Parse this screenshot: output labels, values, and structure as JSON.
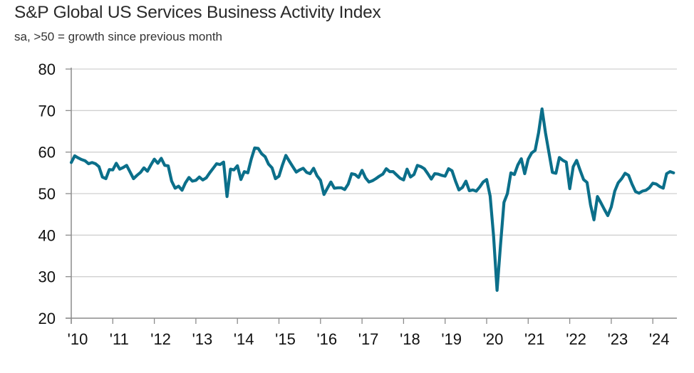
{
  "chart_data": {
    "type": "line",
    "title": "S&P Global US Services Business Activity Index",
    "subtitle": "sa, >50 = growth since previous month",
    "xlabel": "",
    "ylabel": "",
    "ylim": [
      20,
      80
    ],
    "yticks": [
      "80",
      "70",
      "60",
      "50",
      "40",
      "30",
      "20"
    ],
    "ytick_values": [
      80,
      70,
      60,
      50,
      40,
      30,
      20
    ],
    "xticks": [
      "'10",
      "'11",
      "'12",
      "'13",
      "'14",
      "'15",
      "'16",
      "'17",
      "'18",
      "'19",
      "'20",
      "'21",
      "'22",
      "'23",
      "'24"
    ],
    "x_range": [
      "2010-01",
      "2024-07"
    ],
    "grid": "horizontal",
    "legend": "none",
    "line_color": "#0B6F8A",
    "grid_color": "#d0d0d0",
    "axis_color": "#8c8c8c",
    "series": [
      {
        "name": "S&P Global US Services Business Activity Index",
        "frequency": "monthly",
        "start": "2010-01",
        "values": [
          57.5,
          59.1,
          58.6,
          58.2,
          57.9,
          57.2,
          57.5,
          57.2,
          56.5,
          54.0,
          53.6,
          55.8,
          55.7,
          57.3,
          55.9,
          56.3,
          56.8,
          55.2,
          53.6,
          54.4,
          55.1,
          56.2,
          55.4,
          56.9,
          58.3,
          57.3,
          58.5,
          56.8,
          56.7,
          53.0,
          51.3,
          51.8,
          50.8,
          52.6,
          53.9,
          53.0,
          53.2,
          54.0,
          53.3,
          53.8,
          55.0,
          56.1,
          57.2,
          57.0,
          57.6,
          49.3,
          55.9,
          55.7,
          56.7,
          53.4,
          55.3,
          55.0,
          58.3,
          61.0,
          60.9,
          59.6,
          58.9,
          57.1,
          56.2,
          53.6,
          54.2,
          56.9,
          59.2,
          57.8,
          56.5,
          55.2,
          55.7,
          56.1,
          55.1,
          54.8,
          56.1,
          54.3,
          53.2,
          49.8,
          51.3,
          52.8,
          51.3,
          51.4,
          51.4,
          51.0,
          52.3,
          54.8,
          54.6,
          53.9,
          55.6,
          53.8,
          52.8,
          53.1,
          53.6,
          54.2,
          54.7,
          56.0,
          55.3,
          55.3,
          54.5,
          53.7,
          53.3,
          55.9,
          54.0,
          54.6,
          56.8,
          56.5,
          56.0,
          54.8,
          53.5,
          54.8,
          54.7,
          54.4,
          54.2,
          56.0,
          55.5,
          53.0,
          50.9,
          51.5,
          53.0,
          50.7,
          50.9,
          50.6,
          51.6,
          52.8,
          53.4,
          49.4,
          39.8,
          26.7,
          37.5,
          47.9,
          50.0,
          55.0,
          54.6,
          56.9,
          58.4,
          54.8,
          58.3,
          59.8,
          60.4,
          64.7,
          70.4,
          64.6,
          59.9,
          55.1,
          54.9,
          58.7,
          58.0,
          57.6,
          51.2,
          56.5,
          58.0,
          55.6,
          53.4,
          52.7,
          47.3,
          43.7,
          49.3,
          47.8,
          46.2,
          44.7,
          46.8,
          50.6,
          52.6,
          53.6,
          54.9,
          54.4,
          52.3,
          50.5,
          50.1,
          50.6,
          50.8,
          51.4,
          52.5,
          52.3,
          51.7,
          51.3,
          54.8,
          55.3,
          55.0
        ]
      }
    ]
  }
}
